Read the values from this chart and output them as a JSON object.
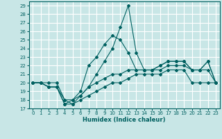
{
  "xlabel": "Humidex (Indice chaleur)",
  "xlim": [
    -0.5,
    23.5
  ],
  "ylim": [
    17,
    29.5
  ],
  "yticks": [
    17,
    18,
    19,
    20,
    21,
    22,
    23,
    24,
    25,
    26,
    27,
    28,
    29
  ],
  "xticks": [
    0,
    1,
    2,
    3,
    4,
    5,
    6,
    7,
    8,
    9,
    10,
    11,
    12,
    13,
    14,
    15,
    16,
    17,
    18,
    19,
    20,
    21,
    22,
    23
  ],
  "bg_color": "#c8e6e6",
  "line_color": "#006060",
  "grid_color": "#ffffff",
  "lines": [
    {
      "x": [
        0,
        1,
        2,
        3,
        4,
        5,
        6,
        7,
        8,
        9,
        10,
        11,
        12,
        13,
        14,
        15,
        16,
        17,
        18,
        19,
        20,
        21,
        22,
        23
      ],
      "y": [
        20,
        20,
        19.5,
        19.5,
        17.5,
        17.5,
        18,
        18.5,
        19,
        19.5,
        20,
        20,
        20.5,
        21,
        21,
        21,
        21,
        21.5,
        21.5,
        21.5,
        20,
        20,
        20,
        20
      ]
    },
    {
      "x": [
        0,
        1,
        2,
        3,
        4,
        5,
        6,
        7,
        8,
        9,
        10,
        11,
        12,
        13,
        14,
        15,
        16,
        17,
        18,
        19,
        20,
        21,
        22,
        23
      ],
      "y": [
        20,
        20,
        20,
        20,
        18,
        17.5,
        18.5,
        19.5,
        20,
        20.5,
        21,
        21,
        21.5,
        21.5,
        21.5,
        21.5,
        21.5,
        22,
        22,
        22,
        21.5,
        21.5,
        21.5,
        20
      ]
    },
    {
      "x": [
        0,
        1,
        2,
        3,
        4,
        5,
        6,
        7,
        8,
        9,
        10,
        11,
        12,
        13,
        14,
        15,
        16,
        17,
        18,
        19,
        20,
        21,
        22,
        23
      ],
      "y": [
        20,
        20,
        19.5,
        19.5,
        17.5,
        18,
        19,
        22,
        23,
        24.5,
        25.5,
        25,
        23.5,
        21.5,
        21.5,
        21.5,
        22,
        22.5,
        22.5,
        22.5,
        21.5,
        21.5,
        22.5,
        20
      ]
    },
    {
      "x": [
        0,
        1,
        2,
        3,
        4,
        5,
        6,
        7,
        8,
        9,
        10,
        11,
        12,
        13,
        14,
        15,
        16,
        17,
        18,
        19,
        20,
        21,
        22,
        23
      ],
      "y": [
        20,
        20,
        19.5,
        19.5,
        18,
        18,
        18.5,
        19.5,
        21,
        22.5,
        24,
        26.5,
        29,
        23.5,
        21.5,
        21.5,
        22,
        22.5,
        22.5,
        22.5,
        21.5,
        21.5,
        22.5,
        20
      ]
    }
  ]
}
